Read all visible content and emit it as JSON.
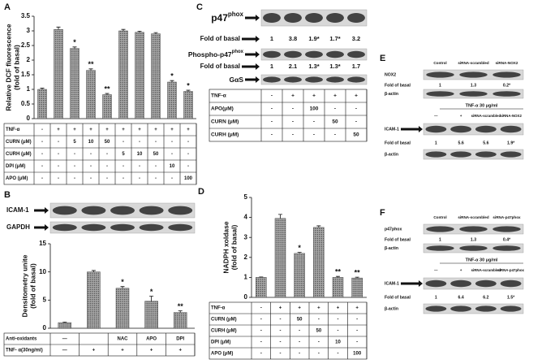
{
  "panel_labels": [
    "A",
    "B",
    "C",
    "D",
    "E",
    "F"
  ],
  "chart_data": [
    {
      "type": "bar",
      "y_label": [
        "Relative DCF fluorescence",
        "(fold of basal)"
      ],
      "values": [
        1,
        3.05,
        2.4,
        1.65,
        0.82,
        3.0,
        2.95,
        2.9,
        1.25,
        0.93
      ],
      "errors": [
        0.04,
        0.08,
        0.05,
        0.05,
        0.04,
        0.05,
        0.04,
        0.04,
        0.05,
        0.04
      ],
      "significance": [
        null,
        null,
        "*",
        "**",
        "**",
        null,
        null,
        null,
        "*",
        "*"
      ],
      "color": "#a8a8a8",
      "ylim": [
        0,
        3.5
      ],
      "yticks": [
        0,
        0.5,
        1,
        1.5,
        2,
        2.5,
        3,
        3.5
      ]
    },
    {
      "type": "bar",
      "y_label": [
        "Densitometry unite",
        "(fold of basal)"
      ],
      "values": [
        1,
        10,
        7.1,
        4.8,
        2.8
      ],
      "errors": [
        0.1,
        0.25,
        0.3,
        0.9,
        0.3
      ],
      "significance": [
        null,
        null,
        "*",
        "*",
        "**"
      ],
      "color": "#a8a8a8",
      "ylim": [
        0,
        15
      ],
      "yticks": [
        0,
        5,
        10,
        15
      ]
    },
    {
      "type": "bar",
      "y_label": [
        "NADPH xoldase",
        "(fold of basal)"
      ],
      "values": [
        1,
        3.95,
        2.2,
        3.5,
        1.0,
        0.97
      ],
      "errors": [
        0.02,
        0.2,
        0.05,
        0.08,
        0.05,
        0.04
      ],
      "significance": [
        null,
        null,
        "*",
        null,
        "**",
        "**"
      ],
      "color": "#a8a8a8",
      "ylim": [
        0,
        5
      ],
      "yticks": [
        0,
        1,
        2,
        3,
        4,
        5
      ]
    }
  ],
  "tables": [
    {
      "rows": [
        {
          "label": "TNF-α",
          "cells": [
            "-",
            "+",
            "+",
            "+",
            "+",
            "+",
            "+",
            "+",
            "+",
            "+"
          ]
        },
        {
          "label": "CURN (μM)",
          "cells": [
            "-",
            "-",
            "5",
            "10",
            "50",
            "-",
            "-",
            "-",
            "-",
            "-"
          ]
        },
        {
          "label": "CURH (μM)",
          "cells": [
            "-",
            "-",
            "-",
            "-",
            "-",
            "5",
            "10",
            "50",
            "-",
            "-"
          ]
        },
        {
          "label": "DPI (μM)",
          "cells": [
            "-",
            "-",
            "-",
            "-",
            "-",
            "-",
            "-",
            "-",
            "10",
            "-"
          ]
        },
        {
          "label": "APO (μM)",
          "cells": [
            "-",
            "-",
            "-",
            "-",
            "-",
            "-",
            "-",
            "-",
            "-",
            "100"
          ]
        }
      ]
    },
    {
      "rows": [
        {
          "label": "Anti-oxidants",
          "cells": [
            "—",
            null,
            "NAC",
            "APO",
            "DPI"
          ]
        },
        {
          "label": "TNF- α(30ng/ml)",
          "cells": [
            "—",
            "+",
            "+",
            "+",
            "+"
          ]
        }
      ]
    },
    {
      "rows": [
        {
          "label": "TNF-α",
          "cells": [
            "-",
            "+",
            "+",
            "+",
            "+"
          ]
        },
        {
          "label": "APO(μM)",
          "cells": [
            "-",
            "-",
            "100",
            "-",
            "-"
          ]
        },
        {
          "label": "CURN (μM)",
          "cells": [
            "-",
            "-",
            "-",
            "50",
            "-"
          ]
        },
        {
          "label": "CURH (μM)",
          "cells": [
            "-",
            "-",
            "-",
            "-",
            "50"
          ]
        }
      ]
    },
    {
      "rows": [
        {
          "label": "TNF-α",
          "cells": [
            "-",
            "+",
            "+",
            "+",
            "+",
            "+"
          ]
        },
        {
          "label": "CURN (μM)",
          "cells": [
            "-",
            "-",
            "50",
            "-",
            "-",
            "-"
          ]
        },
        {
          "label": "CURH (μM)",
          "cells": [
            "-",
            "-",
            "-",
            "50",
            "-",
            "-"
          ]
        },
        {
          "label": "DPI (μM)",
          "cells": [
            "-",
            "-",
            "-",
            "-",
            "10",
            "-"
          ]
        },
        {
          "label": "APO (μM)",
          "cells": [
            "-",
            "-",
            "-",
            "-",
            "-",
            "100"
          ]
        }
      ]
    }
  ],
  "blots_B": [
    {
      "label": "ICAM-1"
    },
    {
      "label": "GAPDH"
    }
  ],
  "blots_C": [
    {
      "label": "p47",
      "sup": "phox",
      "fold_label": "Fold of basal",
      "fold": [
        "1",
        "3.8",
        "1.9*",
        "1.7*",
        "3.2"
      ]
    },
    {
      "label": "Phospho-p47",
      "sup": "phox",
      "fold_label": "Fold of basal",
      "fold": [
        "1",
        "2.1",
        "1.3*",
        "1.3*",
        "1.7"
      ]
    },
    {
      "label": "GαS"
    }
  ],
  "panel_E": {
    "columns": [
      "Control",
      "siRNA-scrambled",
      "siRNA-NOX2"
    ],
    "blots": [
      {
        "label": "NOX2",
        "fold_label": "Fold of basal",
        "fold": [
          "1",
          "1.3",
          "0.2*"
        ]
      },
      {
        "label": "β-actin"
      }
    ],
    "treatment": "TNF-α  30 μg/ml",
    "columns2": [
      "—",
      "+",
      "siRNA-scrambled",
      "siRNA-NOX2"
    ],
    "blots2": [
      {
        "label": "ICAM-1",
        "fold_label": "Fold of basal",
        "fold": [
          "1",
          "5.6",
          "5.6",
          "1.9*"
        ]
      },
      {
        "label": "β-actin"
      }
    ]
  },
  "panel_F": {
    "columns": [
      "Control",
      "siRNA-scrambled",
      "siRNA-p47phox"
    ],
    "blots": [
      {
        "label": "p47phox",
        "fold_label": "Fold of basal",
        "fold": [
          "1",
          "1.3",
          "0.4*"
        ]
      },
      {
        "label": "β-actin"
      }
    ],
    "treatment": "TNF-α  30 μg/ml",
    "columns2": [
      "—",
      "+",
      "siRNA-scrambled",
      "siRNA-p47phox"
    ],
    "blots2": [
      {
        "label": "ICAM-1",
        "fold_label": "Fold of basal",
        "fold": [
          "1",
          "6.4",
          "6.2",
          "1.5*"
        ]
      },
      {
        "label": "β-actin"
      }
    ]
  }
}
